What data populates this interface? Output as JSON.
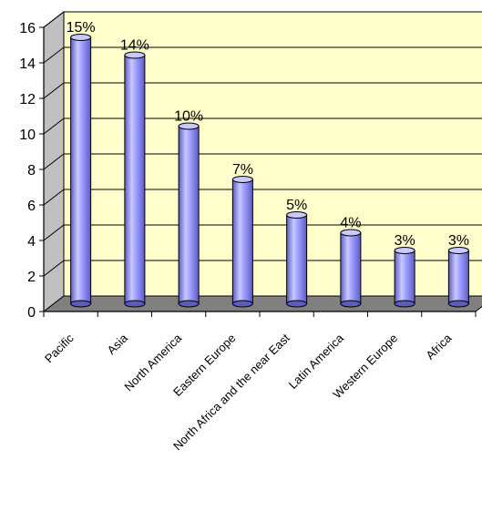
{
  "chart_data": {
    "type": "bar",
    "categories": [
      "Pacific",
      "Asia",
      "North America",
      "Eastern Europe",
      "North Africa and the near East",
      "Latin America",
      "Western Europe",
      "Africa"
    ],
    "values": [
      15,
      14,
      10,
      7,
      5,
      4,
      3,
      3
    ],
    "data_labels": [
      "15%",
      "14%",
      "10%",
      "7%",
      "5%",
      "4%",
      "3%",
      "3%"
    ],
    "y_ticks": [
      "0",
      "2",
      "4",
      "6",
      "8",
      "10",
      "12",
      "14",
      "16"
    ],
    "ylim": [
      0,
      16
    ],
    "grid": true,
    "style": "3d-cylinder",
    "colors": {
      "bar": "#9999ff",
      "bar_dark": "#5c5cc0",
      "bar_light": "#c9c9ff",
      "plot_bg": "#ffffcc",
      "floor": "#808080",
      "side_wall": "#c0c0c0"
    }
  }
}
